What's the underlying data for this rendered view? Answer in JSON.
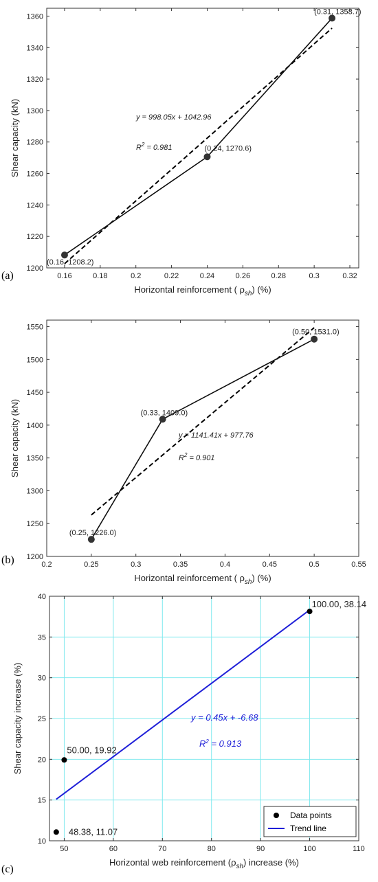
{
  "chart_data": [
    {
      "type": "line",
      "panel_label": "(a)",
      "xlabel": "Horizontal reinforcement ( ρ",
      "xlabel_sub": "sh",
      "xlabel_tail": ") (%)",
      "ylabel": "Shear capacity (kN)",
      "xlim": [
        0.15,
        0.325
      ],
      "ylim": [
        1200,
        1365
      ],
      "xticks": [
        "0.16",
        "0.18",
        "0.2",
        "0.22",
        "0.24",
        "0.26",
        "0.28",
        "0.3",
        "0.32"
      ],
      "yticks": [
        "1200",
        "1220",
        "1240",
        "1260",
        "1280",
        "1300",
        "1320",
        "1340",
        "1360"
      ],
      "grid": false,
      "points": [
        {
          "x": 0.16,
          "y": 1208.2,
          "label": "(0.16, 1208.2)"
        },
        {
          "x": 0.24,
          "y": 1270.6,
          "label": "(0.24, 1270.6)"
        },
        {
          "x": 0.31,
          "y": 1358.7,
          "label": "(0.31, 1358.7)"
        }
      ],
      "trend": {
        "slope": 998.05,
        "intercept": 1042.96,
        "x_range": [
          0.16,
          0.31
        ]
      },
      "equation": "y = 998.05x + 1042.96",
      "r2_prefix": "R",
      "r2_sup": "2",
      "r2_value": " = 0.981"
    },
    {
      "type": "line",
      "panel_label": "(b)",
      "xlabel": "Horizontal reinforcement ( ρ",
      "xlabel_sub": "sh",
      "xlabel_tail": ") (%)",
      "ylabel": "Shear capacity (kN)",
      "xlim": [
        0.2,
        0.55
      ],
      "ylim": [
        1200,
        1560
      ],
      "xticks": [
        "0.2",
        "0.25",
        "0.3",
        "0.35",
        "0.4",
        "0.45",
        "0.5",
        "0.55"
      ],
      "yticks": [
        "1200",
        "1250",
        "1300",
        "1350",
        "1400",
        "1450",
        "1500",
        "1550"
      ],
      "grid": false,
      "points": [
        {
          "x": 0.25,
          "y": 1226.0,
          "label": "(0.25, 1226.0)"
        },
        {
          "x": 0.33,
          "y": 1409.0,
          "label": "(0.33, 1409.0)"
        },
        {
          "x": 0.5,
          "y": 1531.0,
          "label": "(0.50, 1531.0)"
        }
      ],
      "trend": {
        "slope": 1141.41,
        "intercept": 977.76,
        "x_range": [
          0.25,
          0.5
        ]
      },
      "equation": "y = 1141.41x + 977.76",
      "r2_prefix": "R",
      "r2_sup": "2",
      "r2_value": " = 0.901"
    },
    {
      "type": "scatter",
      "panel_label": "(c)",
      "xlabel": "Horizontal web reinforcement (ρ",
      "xlabel_sub": "sh",
      "xlabel_tail": ") increase (%)",
      "ylabel": "Shear capacity increase (%)",
      "xlim": [
        47,
        110
      ],
      "ylim": [
        10,
        40
      ],
      "xticks": [
        "50",
        "60",
        "70",
        "80",
        "90",
        "100",
        "110"
      ],
      "yticks": [
        "10",
        "15",
        "20",
        "25",
        "30",
        "35",
        "40"
      ],
      "grid": true,
      "points": [
        {
          "x": 48.38,
          "y": 11.07,
          "label": "48.38, 11.07"
        },
        {
          "x": 50.0,
          "y": 19.92,
          "label": "50.00, 19.92"
        },
        {
          "x": 100.0,
          "y": 38.14,
          "label": "100.00, 38.14"
        }
      ],
      "trend": {
        "slope": 0.45,
        "intercept": -6.68,
        "x_range": [
          48.38,
          100.0
        ]
      },
      "equation": "y = 0.45x + -6.68",
      "r2_prefix": "R",
      "r2_sup": "2",
      "r2_value": " = 0.913",
      "legend": {
        "position": "bottom-right",
        "entries": [
          "Data points",
          "Trend line"
        ]
      },
      "colors": {
        "points": "#000000",
        "trend": "#1f1fd8",
        "grid": "#7fe9ee"
      }
    }
  ]
}
